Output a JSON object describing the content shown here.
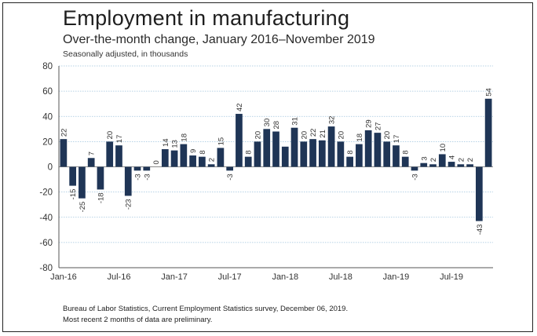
{
  "chart_data": {
    "type": "bar",
    "title": "Employment in manufacturing",
    "subtitle": "Over-the-month change, January 2016–November 2019",
    "note": "Seasonally adjusted, in thousands",
    "source": [
      "Bureau of Labor Statistics, Current Employment Statistics survey, December 06, 2019.",
      "Most recent 2 months of data are preliminary."
    ],
    "ylim": [
      -80,
      80
    ],
    "yticks": [
      "80",
      "60",
      "40",
      "20",
      "0",
      "-20",
      "-40",
      "-60",
      "-80"
    ],
    "xticks": [
      {
        "label": "Jan-16",
        "index": 0
      },
      {
        "label": "Jul-16",
        "index": 6
      },
      {
        "label": "Jan-17",
        "index": 12
      },
      {
        "label": "Jul-17",
        "index": 18
      },
      {
        "label": "Jan-18",
        "index": 24
      },
      {
        "label": "Jul-18",
        "index": 30
      },
      {
        "label": "Jan-19",
        "index": 36
      },
      {
        "label": "Jul-19",
        "index": 42
      }
    ],
    "grid": true,
    "bar_color": "#1f3556",
    "values": [
      22,
      -15,
      -25,
      7,
      -18,
      20,
      17,
      -23,
      -3,
      -3,
      0,
      14,
      13,
      18,
      9,
      8,
      2,
      15,
      -3,
      42,
      8,
      20,
      30,
      28,
      16,
      31,
      20,
      22,
      21,
      32,
      20,
      8,
      18,
      29,
      27,
      20,
      17,
      8,
      -3,
      3,
      2,
      10,
      4,
      2,
      2,
      -43,
      54
    ],
    "data_labels": [
      "22",
      "-15",
      "-25",
      "7",
      "-18",
      "20",
      "17",
      "-23",
      "-3",
      "-3",
      "0",
      "14",
      "13",
      "18",
      "9",
      "8",
      "2",
      "15",
      "-3",
      "42",
      "8",
      "20",
      "30",
      "28",
      "",
      "31",
      "20",
      "22",
      "21",
      "32",
      "20",
      "8",
      "18",
      "29",
      "27",
      "20",
      "17",
      "8",
      "-3",
      "3",
      "2",
      "10",
      "4",
      "2",
      "2",
      "-43",
      "54"
    ]
  }
}
